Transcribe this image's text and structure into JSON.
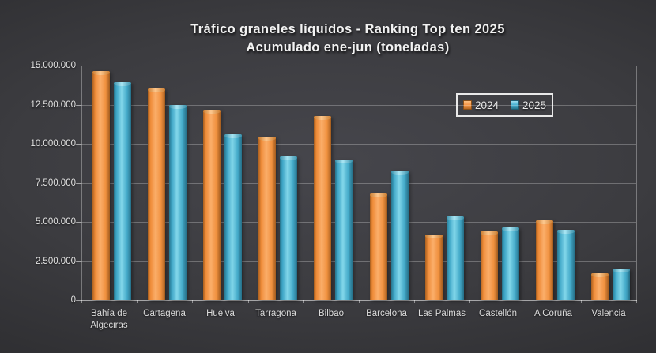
{
  "title": {
    "line1": "Tráfico graneles líquidos - Ranking Top ten 2025",
    "line2": "Acumulado ene-jun (toneladas)"
  },
  "colors": {
    "series_2024": "#f79646",
    "series_2025": "#45b1d2",
    "background_center": "#46464c",
    "background_edge": "#222225",
    "text": "#e3e3e3",
    "gridline": "rgba(255,255,255,0.26)"
  },
  "chart_data": {
    "type": "bar",
    "title": "Tráfico graneles líquidos - Ranking Top ten 2025",
    "subtitle": "Acumulado ene-jun (toneladas)",
    "categories": [
      "Bahía de Algeciras",
      "Cartagena",
      "Huelva",
      "Tarragona",
      "Bilbao",
      "Barcelona",
      "Las Palmas",
      "Castellón",
      "A Coruña",
      "Valencia"
    ],
    "series": [
      {
        "name": "2024",
        "color": "#f79646",
        "values": [
          14650000,
          13550000,
          12150000,
          10450000,
          11750000,
          6800000,
          4200000,
          4400000,
          5100000,
          1700000
        ]
      },
      {
        "name": "2025",
        "color": "#45b1d2",
        "values": [
          13950000,
          12500000,
          10600000,
          9200000,
          9000000,
          8300000,
          5350000,
          4650000,
          4500000,
          2000000
        ]
      }
    ],
    "xlabel": "",
    "ylabel": "",
    "ylim": [
      0,
      15000000
    ],
    "ytick_step": 2500000,
    "grid": true,
    "legend_position": "top-right",
    "legend_labels": [
      "2024",
      "2025"
    ]
  }
}
